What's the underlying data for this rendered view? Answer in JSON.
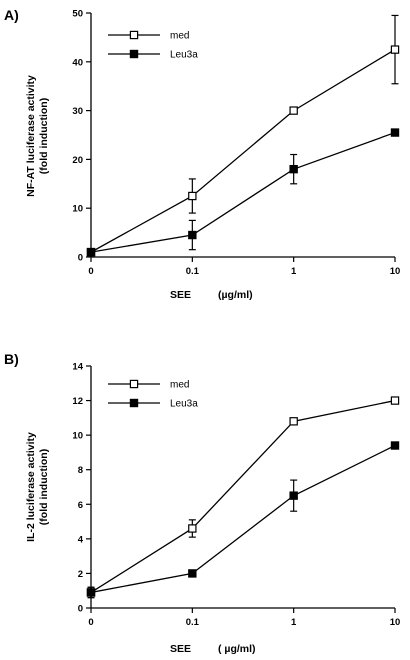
{
  "chart_data": [
    {
      "type": "line",
      "panel_label": "A)",
      "ylabel_line1": "NF-AT  luciferase  activity",
      "ylabel_line2": "(fold induction)",
      "xlabel_main": "SEE",
      "xlabel_unit": "(µg/ml)",
      "x_tick_labels": [
        "0",
        "0.1",
        "1",
        "10"
      ],
      "x": [
        0,
        0.1,
        1,
        10
      ],
      "ylim": [
        0,
        50
      ],
      "y_ticks": [
        0,
        10,
        20,
        30,
        40,
        50
      ],
      "y_tick_labels": [
        "0",
        "10",
        "20",
        "30",
        "40",
        "50"
      ],
      "legend_position": "top-left",
      "series": [
        {
          "name": "med",
          "marker": "open-square",
          "values": [
            1,
            12.5,
            30,
            42.5
          ],
          "errors": [
            0.5,
            3.5,
            0.5,
            7
          ]
        },
        {
          "name": "Leu3a",
          "marker": "filled-square",
          "values": [
            1,
            4.5,
            18,
            25.5
          ],
          "errors": [
            0.5,
            3,
            3,
            0.5
          ]
        }
      ]
    },
    {
      "type": "line",
      "panel_label": "B)",
      "ylabel_line1": "IL-2  luciferase activity",
      "ylabel_line2": "(fold induction)",
      "xlabel_main": "SEE",
      "xlabel_unit": "(  µg/ml)",
      "x_tick_labels": [
        "0",
        "0.1",
        "1",
        "10"
      ],
      "x": [
        0,
        0.1,
        1,
        10
      ],
      "ylim": [
        0,
        14
      ],
      "y_ticks": [
        0,
        2,
        4,
        6,
        8,
        10,
        12,
        14
      ],
      "y_tick_labels": [
        "0",
        "2",
        "4",
        "6",
        "8",
        "10",
        "12",
        "14"
      ],
      "legend_position": "top-left",
      "series": [
        {
          "name": "med",
          "marker": "open-square",
          "values": [
            0.9,
            4.6,
            10.8,
            12
          ],
          "errors": [
            0.3,
            0.5,
            0.1,
            0.1
          ]
        },
        {
          "name": "Leu3a",
          "marker": "filled-square",
          "values": [
            0.9,
            2,
            6.5,
            9.4
          ],
          "errors": [
            0.3,
            0.1,
            0.9,
            0.1
          ]
        }
      ]
    }
  ]
}
